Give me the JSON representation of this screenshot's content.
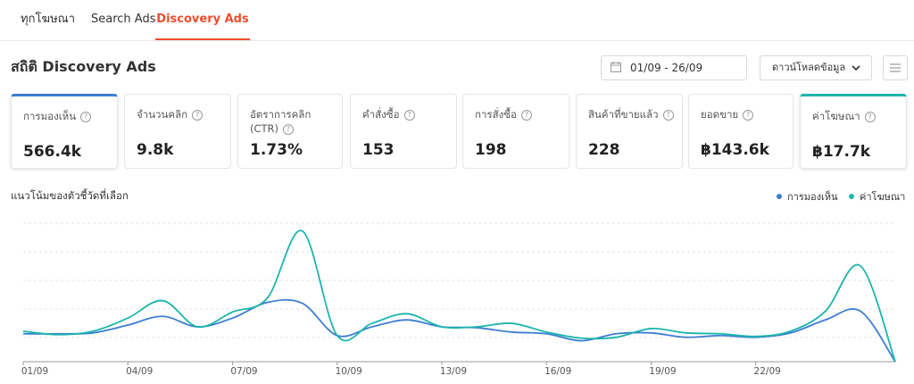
{
  "tabs": [
    {
      "label": "ทุกโฆษณา",
      "active": false
    },
    {
      "label": "Search Ads",
      "active": false
    },
    {
      "label": "Discovery Ads",
      "active": true
    }
  ],
  "title": "สถิติ Discovery Ads",
  "date_range": "01/09 - 26/09",
  "download_label": "ดาวน์โหลดข้อมูล",
  "stats": [
    {
      "label": "การมองเห็น",
      "value": "566.4k",
      "selected": "blue"
    },
    {
      "label": "จำนวนคลิก",
      "value": "9.8k"
    },
    {
      "label": "อัตราการคลิก (CTR)",
      "value": "1.73%"
    },
    {
      "label": "คำสั่งซื้อ",
      "value": "153"
    },
    {
      "label": "การสั่งซื้อ",
      "value": "198"
    },
    {
      "label": "สินค้าที่ขายแล้ว",
      "value": "228"
    },
    {
      "label": "ยอดขาย",
      "value": "฿143.6k"
    },
    {
      "label": "ค่าโฆษณา",
      "value": "฿17.7k",
      "selected": "teal"
    }
  ],
  "trend_title": "แนวโน้มของตัวชี้วัดที่เลือก",
  "legend": [
    {
      "label": "การมองเห็น",
      "color": "#3d7ed1"
    },
    {
      "label": "ค่าโฆษณา",
      "color": "#1bb5ac"
    }
  ],
  "chart_data": {
    "type": "line",
    "x": [
      "01/09",
      "02/09",
      "03/09",
      "04/09",
      "05/09",
      "06/09",
      "07/09",
      "08/09",
      "09/09",
      "10/09",
      "11/09",
      "12/09",
      "13/09",
      "14/09",
      "15/09",
      "16/09",
      "17/09",
      "18/09",
      "19/09",
      "20/09",
      "21/09",
      "22/09",
      "23/09",
      "24/09",
      "25/09",
      "26/09"
    ],
    "x_tick_labels": [
      "01/09",
      "04/09",
      "07/09",
      "10/09",
      "13/09",
      "16/09",
      "19/09",
      "22/09"
    ],
    "series": [
      {
        "name": "การมองเห็น",
        "color": "#3d7ed1",
        "values": [
          32,
          32,
          33,
          42,
          52,
          40,
          50,
          68,
          67,
          30,
          40,
          48,
          40,
          39,
          34,
          32,
          24,
          32,
          33,
          28,
          30,
          28,
          33,
          48,
          58,
          0
        ]
      },
      {
        "name": "ค่าโฆษณา",
        "color": "#1bb5ac",
        "values": [
          35,
          31,
          35,
          50,
          70,
          40,
          57,
          73,
          150,
          30,
          44,
          55,
          40,
          40,
          44,
          34,
          27,
          28,
          38,
          33,
          32,
          29,
          35,
          58,
          110,
          0
        ]
      }
    ],
    "ylim": [
      0,
      165
    ],
    "grid": true
  }
}
